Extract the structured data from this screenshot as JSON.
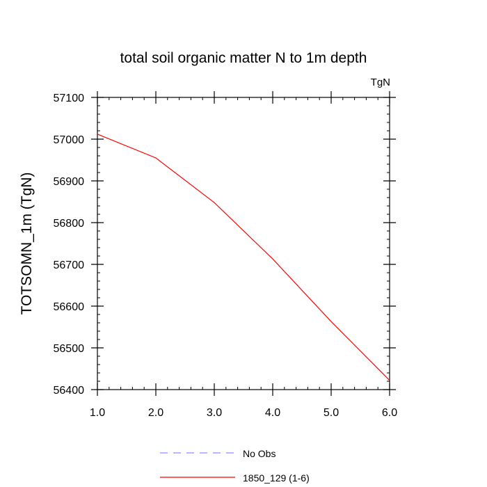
{
  "chart_data": {
    "type": "line",
    "title": "total soil organic matter N to 1m depth",
    "units_label": "TgN",
    "xlabel": "",
    "ylabel": "TOTSOMN_1m  (TgN)",
    "xlim": [
      1.0,
      6.0
    ],
    "ylim": [
      56400,
      57100
    ],
    "x_ticks": [
      "1.0",
      "2.0",
      "3.0",
      "4.0",
      "5.0",
      "6.0"
    ],
    "y_ticks": [
      "56400",
      "56500",
      "56600",
      "56700",
      "56800",
      "56900",
      "57000",
      "57100"
    ],
    "x_tick_values": [
      1,
      2,
      3,
      4,
      5,
      6
    ],
    "y_tick_values": [
      56400,
      56500,
      56600,
      56700,
      56800,
      56900,
      57000,
      57100
    ],
    "grid": false,
    "legend_position": "bottom",
    "series": [
      {
        "name": "No Obs",
        "color": "#8c8cff",
        "dash": "dashed",
        "x": [],
        "values": []
      },
      {
        "name": "1850_129 (1-6)",
        "color": "#ff0000",
        "dash": "solid",
        "x": [
          1,
          2,
          3,
          4,
          5,
          6
        ],
        "values": [
          57012,
          56955,
          56848,
          56713,
          56563,
          56422
        ]
      }
    ]
  }
}
